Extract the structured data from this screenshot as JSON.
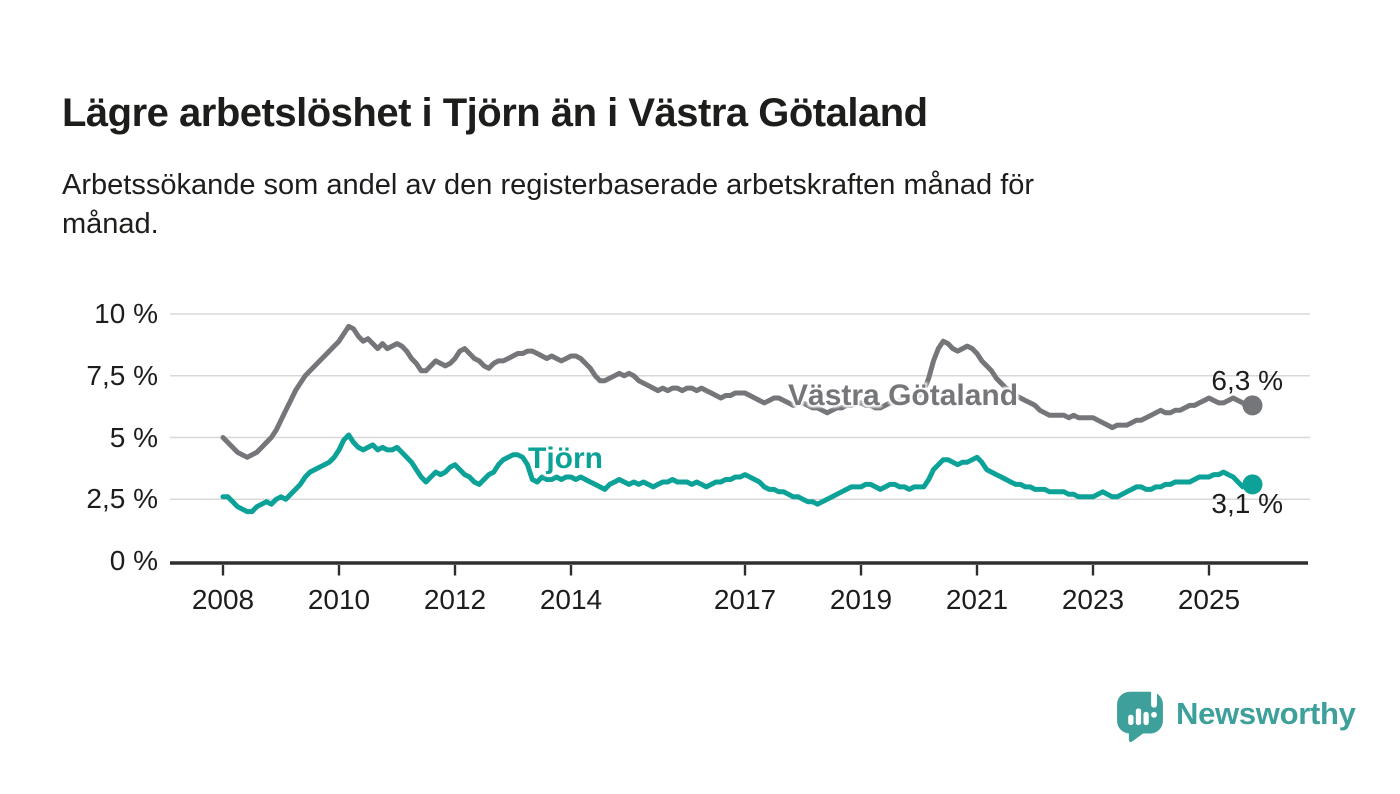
{
  "page": {
    "title": "Lägre arbetslöshet i Tjörn än i Västra Götaland",
    "subtitle": "Arbetssökande som andel av den registerbaserade arbetskraften månad för månad.",
    "subtitle_lines": [
      "Arbetssökande som andel av den registerbaserade arbetskraften månad för",
      "månad."
    ]
  },
  "branding": {
    "logo_text": "Newsworthy",
    "logo_icon": "newsworthy-speech-bubble-bar-chart-icon",
    "brand_color": "#3da09b"
  },
  "chart_data": {
    "type": "line",
    "title": "Lägre arbetslöshet i Tjörn än i Västra Götaland",
    "unit": "%",
    "frequency": "monthly",
    "x_start": "2008-01",
    "x_end": "2025-10",
    "ylim": [
      0,
      10
    ],
    "grid": true,
    "legend": "inline-labels",
    "colors": {
      "axis": "#2e2e2e",
      "gridline": "#d8d8d8"
    },
    "x_ticks": [
      2008,
      2010,
      2012,
      2014,
      2017,
      2019,
      2021,
      2023,
      2025
    ],
    "y_ticks": [
      {
        "value": 0,
        "label": "0 %"
      },
      {
        "value": 2.5,
        "label": "2,5 %"
      },
      {
        "value": 5,
        "label": "5 %"
      },
      {
        "value": 7.5,
        "label": "7,5 %"
      },
      {
        "value": 10,
        "label": "10 %"
      }
    ],
    "series": [
      {
        "name": "Västra Götaland",
        "color": "#75767a",
        "end_label": "6,3 %",
        "end_value": 6.3,
        "values": [
          5.0,
          4.8,
          4.6,
          4.4,
          4.3,
          4.2,
          4.3,
          4.4,
          4.6,
          4.8,
          5.0,
          5.3,
          5.7,
          6.1,
          6.5,
          6.9,
          7.2,
          7.5,
          7.7,
          7.9,
          8.1,
          8.3,
          8.5,
          8.7,
          8.9,
          9.2,
          9.5,
          9.4,
          9.1,
          8.9,
          9.0,
          8.8,
          8.6,
          8.8,
          8.6,
          8.7,
          8.8,
          8.7,
          8.5,
          8.2,
          8.0,
          7.7,
          7.7,
          7.9,
          8.1,
          8.0,
          7.9,
          8.0,
          8.2,
          8.5,
          8.6,
          8.4,
          8.2,
          8.1,
          7.9,
          7.8,
          8.0,
          8.1,
          8.1,
          8.2,
          8.3,
          8.4,
          8.4,
          8.5,
          8.5,
          8.4,
          8.3,
          8.2,
          8.3,
          8.2,
          8.1,
          8.2,
          8.3,
          8.3,
          8.2,
          8.0,
          7.8,
          7.5,
          7.3,
          7.3,
          7.4,
          7.5,
          7.6,
          7.5,
          7.6,
          7.5,
          7.3,
          7.2,
          7.1,
          7.0,
          6.9,
          7.0,
          6.9,
          7.0,
          7.0,
          6.9,
          7.0,
          7.0,
          6.9,
          7.0,
          6.9,
          6.8,
          6.7,
          6.6,
          6.7,
          6.7,
          6.8,
          6.8,
          6.8,
          6.7,
          6.6,
          6.5,
          6.4,
          6.5,
          6.6,
          6.6,
          6.5,
          6.4,
          6.3,
          6.4,
          6.4,
          6.3,
          6.2,
          6.2,
          6.1,
          6.0,
          6.1,
          6.2,
          6.2,
          6.3,
          6.3,
          6.4,
          6.4,
          6.3,
          6.3,
          6.2,
          6.2,
          6.3,
          6.4,
          6.4,
          6.5,
          6.5,
          6.6,
          6.6,
          6.7,
          6.9,
          7.4,
          8.1,
          8.6,
          8.9,
          8.8,
          8.6,
          8.5,
          8.6,
          8.7,
          8.6,
          8.4,
          8.1,
          7.9,
          7.7,
          7.4,
          7.2,
          7.0,
          6.9,
          6.7,
          6.6,
          6.5,
          6.4,
          6.3,
          6.1,
          6.0,
          5.9,
          5.9,
          5.9,
          5.9,
          5.8,
          5.9,
          5.8,
          5.8,
          5.8,
          5.8,
          5.7,
          5.6,
          5.5,
          5.4,
          5.5,
          5.5,
          5.5,
          5.6,
          5.7,
          5.7,
          5.8,
          5.9,
          6.0,
          6.1,
          6.0,
          6.0,
          6.1,
          6.1,
          6.2,
          6.3,
          6.3,
          6.4,
          6.5,
          6.6,
          6.5,
          6.4,
          6.4,
          6.5,
          6.6,
          6.5,
          6.4,
          6.2,
          6.3
        ]
      },
      {
        "name": "Tjörn",
        "color": "#0da298",
        "end_label": "3,1 %",
        "end_value": 3.1,
        "values": [
          2.6,
          2.6,
          2.4,
          2.2,
          2.1,
          2.0,
          2.0,
          2.2,
          2.3,
          2.4,
          2.3,
          2.5,
          2.6,
          2.5,
          2.7,
          2.9,
          3.1,
          3.4,
          3.6,
          3.7,
          3.8,
          3.9,
          4.0,
          4.2,
          4.5,
          4.9,
          5.1,
          4.8,
          4.6,
          4.5,
          4.6,
          4.7,
          4.5,
          4.6,
          4.5,
          4.5,
          4.6,
          4.4,
          4.2,
          4.0,
          3.7,
          3.4,
          3.2,
          3.4,
          3.6,
          3.5,
          3.6,
          3.8,
          3.9,
          3.7,
          3.5,
          3.4,
          3.2,
          3.1,
          3.3,
          3.5,
          3.6,
          3.9,
          4.1,
          4.2,
          4.3,
          4.3,
          4.2,
          3.9,
          3.3,
          3.2,
          3.4,
          3.3,
          3.3,
          3.4,
          3.3,
          3.4,
          3.4,
          3.3,
          3.4,
          3.3,
          3.2,
          3.1,
          3.0,
          2.9,
          3.1,
          3.2,
          3.3,
          3.2,
          3.1,
          3.2,
          3.1,
          3.2,
          3.1,
          3.0,
          3.1,
          3.2,
          3.2,
          3.3,
          3.2,
          3.2,
          3.2,
          3.1,
          3.2,
          3.1,
          3.0,
          3.1,
          3.2,
          3.2,
          3.3,
          3.3,
          3.4,
          3.4,
          3.5,
          3.4,
          3.3,
          3.2,
          3.0,
          2.9,
          2.9,
          2.8,
          2.8,
          2.7,
          2.6,
          2.6,
          2.5,
          2.4,
          2.4,
          2.3,
          2.4,
          2.5,
          2.6,
          2.7,
          2.8,
          2.9,
          3.0,
          3.0,
          3.0,
          3.1,
          3.1,
          3.0,
          2.9,
          3.0,
          3.1,
          3.1,
          3.0,
          3.0,
          2.9,
          3.0,
          3.0,
          3.0,
          3.3,
          3.7,
          3.9,
          4.1,
          4.1,
          4.0,
          3.9,
          4.0,
          4.0,
          4.1,
          4.2,
          4.0,
          3.7,
          3.6,
          3.5,
          3.4,
          3.3,
          3.2,
          3.1,
          3.1,
          3.0,
          3.0,
          2.9,
          2.9,
          2.9,
          2.8,
          2.8,
          2.8,
          2.8,
          2.7,
          2.7,
          2.6,
          2.6,
          2.6,
          2.6,
          2.7,
          2.8,
          2.7,
          2.6,
          2.6,
          2.7,
          2.8,
          2.9,
          3.0,
          3.0,
          2.9,
          2.9,
          3.0,
          3.0,
          3.1,
          3.1,
          3.2,
          3.2,
          3.2,
          3.2,
          3.3,
          3.4,
          3.4,
          3.4,
          3.5,
          3.5,
          3.6,
          3.5,
          3.4,
          3.2,
          3.0,
          3.2,
          3.1
        ]
      }
    ]
  }
}
